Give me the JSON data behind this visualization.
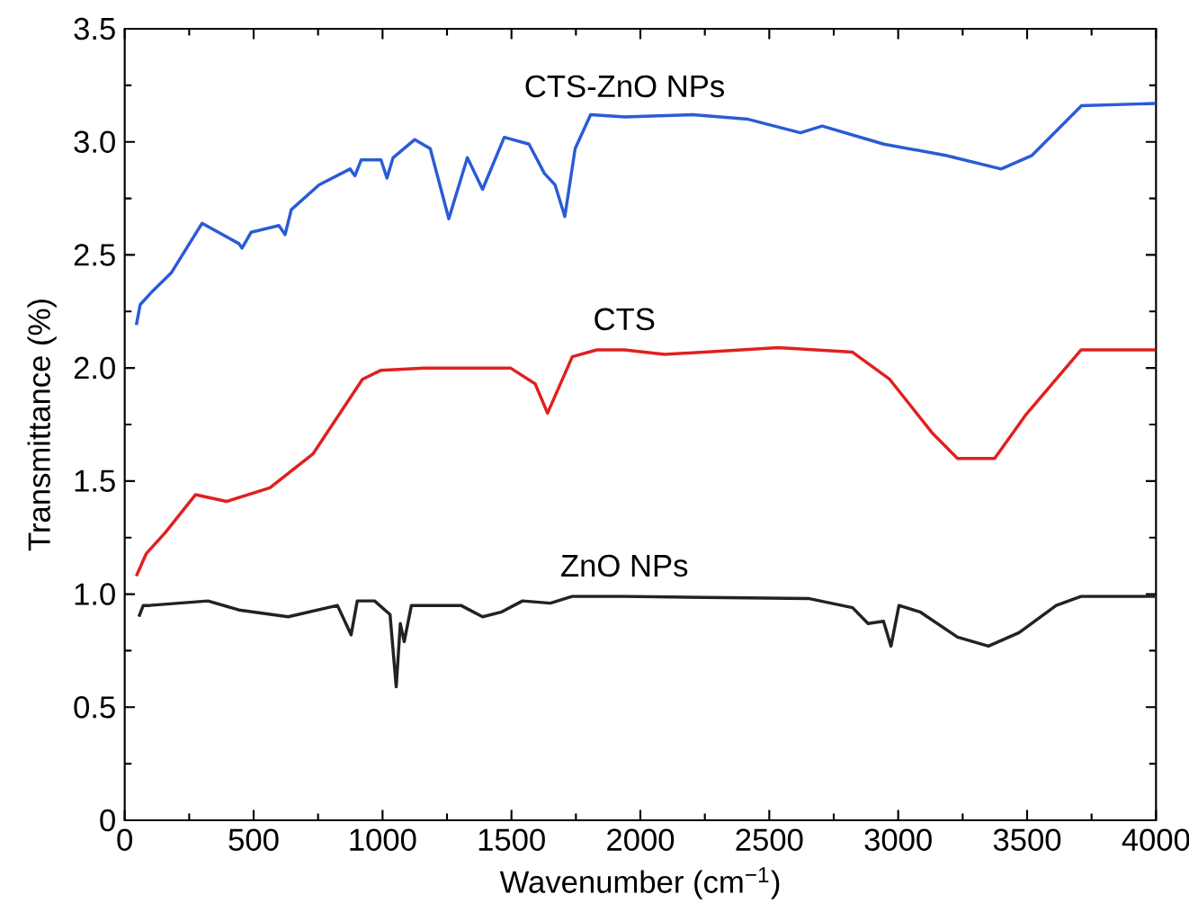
{
  "chart_data": {
    "type": "line",
    "xlabel": "Wavenumber (cm$^{−1}$)",
    "ylabel": "Transmittance (%)",
    "xlim": [
      0,
      4000
    ],
    "ylim": [
      0,
      3.5
    ],
    "xticks": [
      0,
      500,
      1000,
      1500,
      2000,
      2500,
      3000,
      3500,
      4000
    ],
    "yticks": [
      0,
      0.5,
      {
        "value": 1,
        "label": "1.0"
      },
      1.5,
      {
        "value": 2,
        "label": "2.0"
      },
      2.5,
      {
        "value": 3,
        "label": "3.0"
      },
      3.5
    ],
    "grid": false,
    "legend": false,
    "marker": "none",
    "line_style": "solid",
    "series": [
      {
        "name": "CTS-ZnO NPs",
        "color": "#2a5bd7",
        "x": [
          45,
          60,
          108,
          180,
          300,
          443,
          455,
          490,
          598,
          622,
          646,
          754,
          874,
          893,
          917,
          994,
          1017,
          1041,
          1125,
          1185,
          1257,
          1329,
          1388,
          1472,
          1568,
          1628,
          1669,
          1707,
          1747,
          1807,
          1939,
          2202,
          2418,
          2621,
          2705,
          2944,
          3184,
          3399,
          3519,
          3711,
          3998
        ],
        "values": [
          2.19,
          2.28,
          2.34,
          2.42,
          2.64,
          2.55,
          2.53,
          2.6,
          2.63,
          2.59,
          2.7,
          2.81,
          2.88,
          2.85,
          2.92,
          2.92,
          2.84,
          2.93,
          3.01,
          2.97,
          2.66,
          2.93,
          2.79,
          3.02,
          2.99,
          2.86,
          2.81,
          2.67,
          2.97,
          3.12,
          3.11,
          3.12,
          3.1,
          3.04,
          3.07,
          2.99,
          2.94,
          2.88,
          2.94,
          3.16,
          3.17
        ]
      },
      {
        "name": "CTS",
        "color": "#e02020",
        "x": [
          45,
          84,
          156,
          275,
          395,
          563,
          730,
          922,
          994,
          1161,
          1496,
          1592,
          1640,
          1736,
          1831,
          1938,
          2094,
          2536,
          2823,
          2967,
          3134,
          3230,
          3374,
          3493,
          3709,
          3996
        ],
        "values": [
          1.08,
          1.18,
          1.27,
          1.44,
          1.41,
          1.47,
          1.62,
          1.95,
          1.99,
          2.0,
          2.0,
          1.93,
          1.8,
          2.05,
          2.08,
          2.08,
          2.06,
          2.09,
          2.07,
          1.95,
          1.71,
          1.6,
          1.6,
          1.79,
          2.08,
          2.08
        ]
      },
      {
        "name": "ZnO NPs",
        "color": "#222222",
        "x": [
          55,
          72,
          96,
          323,
          443,
          634,
          825,
          878,
          902,
          969,
          1029,
          1053,
          1069,
          1084,
          1112,
          1304,
          1388,
          1459,
          1543,
          1651,
          1735,
          1938,
          2656,
          2823,
          2883,
          2943,
          2972,
          3003,
          3087,
          3230,
          3350,
          3469,
          3613,
          3709,
          3996
        ],
        "values": [
          0.9,
          0.95,
          0.95,
          0.97,
          0.93,
          0.9,
          0.95,
          0.82,
          0.97,
          0.97,
          0.91,
          0.59,
          0.87,
          0.79,
          0.95,
          0.95,
          0.9,
          0.92,
          0.97,
          0.96,
          0.99,
          0.99,
          0.98,
          0.94,
          0.87,
          0.88,
          0.77,
          0.95,
          0.92,
          0.81,
          0.77,
          0.83,
          0.95,
          0.99,
          0.99
        ]
      }
    ]
  }
}
